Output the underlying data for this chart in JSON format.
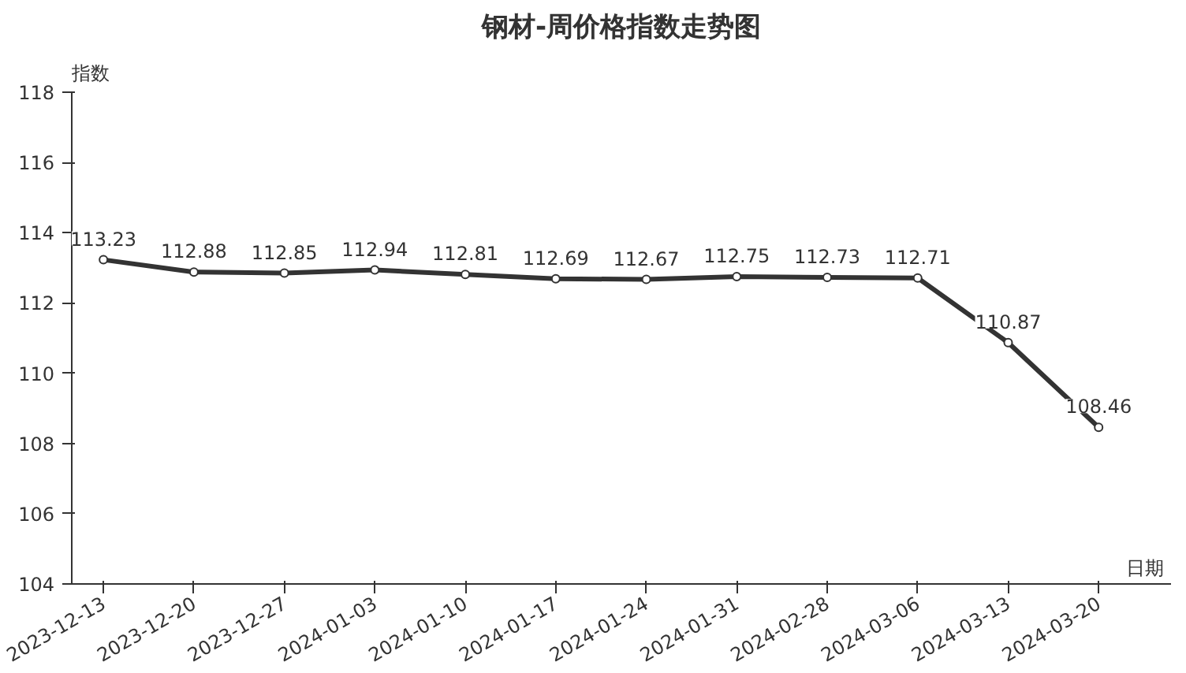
{
  "chart_data": {
    "type": "line",
    "title": "钢材-周价格指数走势图",
    "xlabel": "日期",
    "ylabel": "指数",
    "categories": [
      "2023-12-13",
      "2023-12-20",
      "2023-12-27",
      "2024-01-03",
      "2024-01-10",
      "2024-01-17",
      "2024-01-24",
      "2024-01-31",
      "2024-02-28",
      "2024-03-06",
      "2024-03-13",
      "2024-03-20"
    ],
    "series": [
      {
        "color": "#333333",
        "values": [
          113.23,
          112.88,
          112.85,
          112.94,
          112.81,
          112.69,
          112.67,
          112.75,
          112.73,
          112.71,
          110.87,
          108.46
        ]
      }
    ],
    "ylim": [
      104,
      118
    ],
    "yticks": [
      104,
      106,
      108,
      110,
      112,
      114,
      116,
      118
    ],
    "data_labels": true,
    "marker": "circle",
    "line_style": "solid",
    "grid": false
  }
}
